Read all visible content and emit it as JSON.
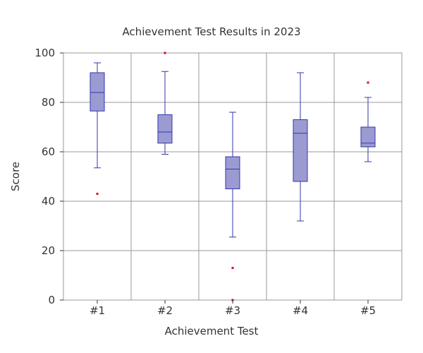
{
  "chart_data": {
    "type": "box",
    "title": "Achievement Test Results in 2023",
    "xlabel": "Achievement Test",
    "ylabel": "Score",
    "ylim": [
      0,
      100
    ],
    "yticks": [
      0,
      20,
      40,
      60,
      80,
      100
    ],
    "grid": true,
    "categories": [
      "#1",
      "#2",
      "#3",
      "#4",
      "#5"
    ],
    "series": [
      {
        "category": "#1",
        "min": 53.5,
        "q1": 76.5,
        "median": 84,
        "q3": 92,
        "max": 96,
        "outliers": [
          43
        ]
      },
      {
        "category": "#2",
        "min": 59,
        "q1": 63.5,
        "median": 68,
        "q3": 75,
        "max": 92.5,
        "outliers": [
          100
        ]
      },
      {
        "category": "#3",
        "min": 25.5,
        "q1": 45,
        "median": 53,
        "q3": 58,
        "max": 76,
        "outliers": [
          13,
          0
        ]
      },
      {
        "category": "#4",
        "min": 32,
        "q1": 48,
        "median": 67.5,
        "q3": 73,
        "max": 92,
        "outliers": []
      },
      {
        "category": "#5",
        "min": 56,
        "q1": 62,
        "median": 63.5,
        "q3": 70,
        "max": 82,
        "outliers": [
          88
        ]
      }
    ],
    "colors": {
      "box_fill": "#9b9bd2",
      "box_stroke": "#3636b0",
      "outlier": "#e0001b",
      "grid": "#999999"
    }
  }
}
